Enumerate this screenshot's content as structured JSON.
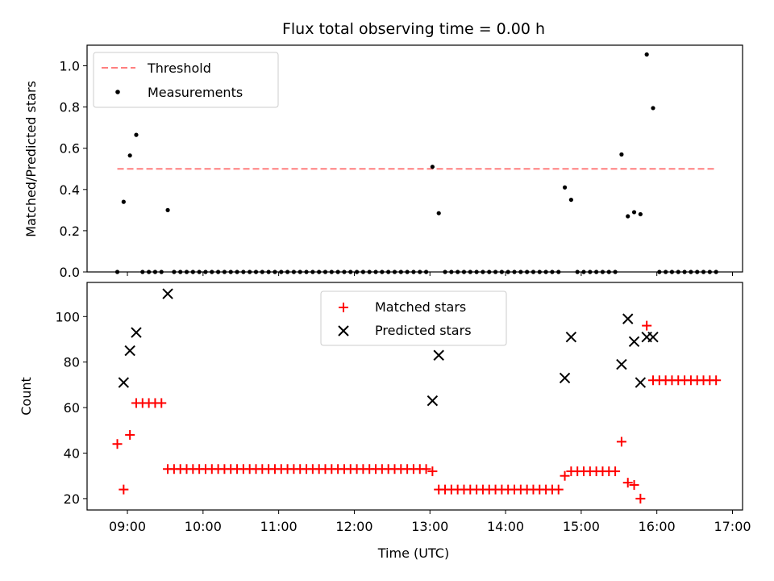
{
  "chart_data": [
    {
      "type": "scatter",
      "title": "Flux total observing time = 0.00 h",
      "ylabel": "Matched/Predicted stars",
      "xlabel": "",
      "xlim": [
        "08:28",
        "17:08"
      ],
      "ylim": [
        0.0,
        1.1
      ],
      "yticks": [
        "0.0",
        "0.2",
        "0.4",
        "0.6",
        "0.8",
        "1.0"
      ],
      "legend_position": "top-left",
      "legend": [
        {
          "label": "Threshold",
          "style": "dashed-line",
          "color": "#ff7f7f"
        },
        {
          "label": "Measurements",
          "style": "dot",
          "color": "#000000"
        }
      ],
      "threshold": {
        "value": 0.5,
        "x_start": "08:52",
        "x_end": "16:46"
      },
      "series": [
        {
          "name": "Measurements",
          "color": "#000000",
          "points": [
            [
              "08:52",
              0.0
            ],
            [
              "08:57",
              0.34
            ],
            [
              "09:02",
              0.565
            ],
            [
              "09:07",
              0.665
            ],
            [
              "09:12",
              0.0
            ],
            [
              "09:17",
              0.0
            ],
            [
              "09:22",
              0.0
            ],
            [
              "09:27",
              0.0
            ],
            [
              "09:32",
              0.3
            ],
            [
              "09:37",
              0.0
            ],
            [
              "09:42",
              0.0
            ],
            [
              "09:47",
              0.0
            ],
            [
              "09:52",
              0.0
            ],
            [
              "09:57",
              0.0
            ],
            [
              "10:02",
              0.0
            ],
            [
              "10:07",
              0.0
            ],
            [
              "10:12",
              0.0
            ],
            [
              "10:17",
              0.0
            ],
            [
              "10:22",
              0.0
            ],
            [
              "10:27",
              0.0
            ],
            [
              "10:32",
              0.0
            ],
            [
              "10:37",
              0.0
            ],
            [
              "10:42",
              0.0
            ],
            [
              "10:47",
              0.0
            ],
            [
              "10:52",
              0.0
            ],
            [
              "10:57",
              0.0
            ],
            [
              "11:02",
              0.0
            ],
            [
              "11:07",
              0.0
            ],
            [
              "11:12",
              0.0
            ],
            [
              "11:17",
              0.0
            ],
            [
              "11:22",
              0.0
            ],
            [
              "11:27",
              0.0
            ],
            [
              "11:32",
              0.0
            ],
            [
              "11:37",
              0.0
            ],
            [
              "11:42",
              0.0
            ],
            [
              "11:47",
              0.0
            ],
            [
              "11:52",
              0.0
            ],
            [
              "11:57",
              0.0
            ],
            [
              "12:02",
              0.0
            ],
            [
              "12:07",
              0.0
            ],
            [
              "12:12",
              0.0
            ],
            [
              "12:17",
              0.0
            ],
            [
              "12:22",
              0.0
            ],
            [
              "12:27",
              0.0
            ],
            [
              "12:32",
              0.0
            ],
            [
              "12:37",
              0.0
            ],
            [
              "12:42",
              0.0
            ],
            [
              "12:47",
              0.0
            ],
            [
              "12:52",
              0.0
            ],
            [
              "12:57",
              0.0
            ],
            [
              "13:02",
              0.51
            ],
            [
              "13:07",
              0.285
            ],
            [
              "13:12",
              0.0
            ],
            [
              "13:17",
              0.0
            ],
            [
              "13:22",
              0.0
            ],
            [
              "13:27",
              0.0
            ],
            [
              "13:32",
              0.0
            ],
            [
              "13:37",
              0.0
            ],
            [
              "13:42",
              0.0
            ],
            [
              "13:47",
              0.0
            ],
            [
              "13:52",
              0.0
            ],
            [
              "13:57",
              0.0
            ],
            [
              "14:02",
              0.0
            ],
            [
              "14:07",
              0.0
            ],
            [
              "14:12",
              0.0
            ],
            [
              "14:17",
              0.0
            ],
            [
              "14:22",
              0.0
            ],
            [
              "14:27",
              0.0
            ],
            [
              "14:32",
              0.0
            ],
            [
              "14:37",
              0.0
            ],
            [
              "14:42",
              0.0
            ],
            [
              "14:47",
              0.41
            ],
            [
              "14:52",
              0.35
            ],
            [
              "14:57",
              0.0
            ],
            [
              "15:02",
              0.0
            ],
            [
              "15:07",
              0.0
            ],
            [
              "15:12",
              0.0
            ],
            [
              "15:17",
              0.0
            ],
            [
              "15:22",
              0.0
            ],
            [
              "15:27",
              0.0
            ],
            [
              "15:32",
              0.57
            ],
            [
              "15:37",
              0.27
            ],
            [
              "15:42",
              0.29
            ],
            [
              "15:47",
              0.28
            ],
            [
              "15:52",
              1.055
            ],
            [
              "15:57",
              0.795
            ],
            [
              "16:02",
              0.0
            ],
            [
              "16:07",
              0.0
            ],
            [
              "16:12",
              0.0
            ],
            [
              "16:17",
              0.0
            ],
            [
              "16:22",
              0.0
            ],
            [
              "16:27",
              0.0
            ],
            [
              "16:32",
              0.0
            ],
            [
              "16:37",
              0.0
            ],
            [
              "16:42",
              0.0
            ],
            [
              "16:47",
              0.0
            ]
          ]
        }
      ]
    },
    {
      "type": "scatter",
      "title": "",
      "ylabel": "Count",
      "xlabel": "Time (UTC)",
      "xlim": [
        "08:28",
        "17:08"
      ],
      "ylim": [
        15,
        115
      ],
      "yticks": [
        "20",
        "40",
        "60",
        "80",
        "100"
      ],
      "xticks": [
        "09:00",
        "10:00",
        "11:00",
        "12:00",
        "13:00",
        "14:00",
        "15:00",
        "16:00",
        "17:00"
      ],
      "legend_position": "top-center",
      "legend": [
        {
          "label": "Matched stars",
          "style": "plus",
          "color": "#ff0000"
        },
        {
          "label": "Predicted stars",
          "style": "cross",
          "color": "#000000"
        }
      ],
      "series": [
        {
          "name": "Matched stars",
          "color": "#ff0000",
          "marker": "plus",
          "points": [
            [
              "08:52",
              44
            ],
            [
              "08:57",
              24
            ],
            [
              "09:02",
              48
            ],
            [
              "09:07",
              62
            ],
            [
              "09:12",
              62
            ],
            [
              "09:17",
              62
            ],
            [
              "09:22",
              62
            ],
            [
              "09:27",
              62
            ],
            [
              "09:32",
              33
            ],
            [
              "09:37",
              33
            ],
            [
              "09:42",
              33
            ],
            [
              "09:47",
              33
            ],
            [
              "09:52",
              33
            ],
            [
              "09:57",
              33
            ],
            [
              "10:02",
              33
            ],
            [
              "10:07",
              33
            ],
            [
              "10:12",
              33
            ],
            [
              "10:17",
              33
            ],
            [
              "10:22",
              33
            ],
            [
              "10:27",
              33
            ],
            [
              "10:32",
              33
            ],
            [
              "10:37",
              33
            ],
            [
              "10:42",
              33
            ],
            [
              "10:47",
              33
            ],
            [
              "10:52",
              33
            ],
            [
              "10:57",
              33
            ],
            [
              "11:02",
              33
            ],
            [
              "11:07",
              33
            ],
            [
              "11:12",
              33
            ],
            [
              "11:17",
              33
            ],
            [
              "11:22",
              33
            ],
            [
              "11:27",
              33
            ],
            [
              "11:32",
              33
            ],
            [
              "11:37",
              33
            ],
            [
              "11:42",
              33
            ],
            [
              "11:47",
              33
            ],
            [
              "11:52",
              33
            ],
            [
              "11:57",
              33
            ],
            [
              "12:02",
              33
            ],
            [
              "12:07",
              33
            ],
            [
              "12:12",
              33
            ],
            [
              "12:17",
              33
            ],
            [
              "12:22",
              33
            ],
            [
              "12:27",
              33
            ],
            [
              "12:32",
              33
            ],
            [
              "12:37",
              33
            ],
            [
              "12:42",
              33
            ],
            [
              "12:47",
              33
            ],
            [
              "12:52",
              33
            ],
            [
              "12:57",
              33
            ],
            [
              "13:02",
              32
            ],
            [
              "13:07",
              24
            ],
            [
              "13:12",
              24
            ],
            [
              "13:17",
              24
            ],
            [
              "13:22",
              24
            ],
            [
              "13:27",
              24
            ],
            [
              "13:32",
              24
            ],
            [
              "13:37",
              24
            ],
            [
              "13:42",
              24
            ],
            [
              "13:47",
              24
            ],
            [
              "13:52",
              24
            ],
            [
              "13:57",
              24
            ],
            [
              "14:02",
              24
            ],
            [
              "14:07",
              24
            ],
            [
              "14:12",
              24
            ],
            [
              "14:17",
              24
            ],
            [
              "14:22",
              24
            ],
            [
              "14:27",
              24
            ],
            [
              "14:32",
              24
            ],
            [
              "14:37",
              24
            ],
            [
              "14:42",
              24
            ],
            [
              "14:47",
              30
            ],
            [
              "14:52",
              32
            ],
            [
              "14:57",
              32
            ],
            [
              "15:02",
              32
            ],
            [
              "15:07",
              32
            ],
            [
              "15:12",
              32
            ],
            [
              "15:17",
              32
            ],
            [
              "15:22",
              32
            ],
            [
              "15:27",
              32
            ],
            [
              "15:32",
              45
            ],
            [
              "15:37",
              27
            ],
            [
              "15:42",
              26
            ],
            [
              "15:47",
              20
            ],
            [
              "15:52",
              96
            ],
            [
              "15:57",
              72
            ],
            [
              "16:02",
              72
            ],
            [
              "16:07",
              72
            ],
            [
              "16:12",
              72
            ],
            [
              "16:17",
              72
            ],
            [
              "16:22",
              72
            ],
            [
              "16:27",
              72
            ],
            [
              "16:32",
              72
            ],
            [
              "16:37",
              72
            ],
            [
              "16:42",
              72
            ],
            [
              "16:47",
              72
            ]
          ]
        },
        {
          "name": "Predicted stars",
          "color": "#000000",
          "marker": "cross",
          "points": [
            [
              "08:57",
              71
            ],
            [
              "09:02",
              85
            ],
            [
              "09:07",
              93
            ],
            [
              "09:32",
              110
            ],
            [
              "13:02",
              63
            ],
            [
              "13:07",
              83
            ],
            [
              "14:47",
              73
            ],
            [
              "14:52",
              91
            ],
            [
              "15:32",
              79
            ],
            [
              "15:37",
              99
            ],
            [
              "15:42",
              89
            ],
            [
              "15:47",
              71
            ],
            [
              "15:52",
              91
            ],
            [
              "15:57",
              91
            ]
          ]
        }
      ]
    }
  ]
}
